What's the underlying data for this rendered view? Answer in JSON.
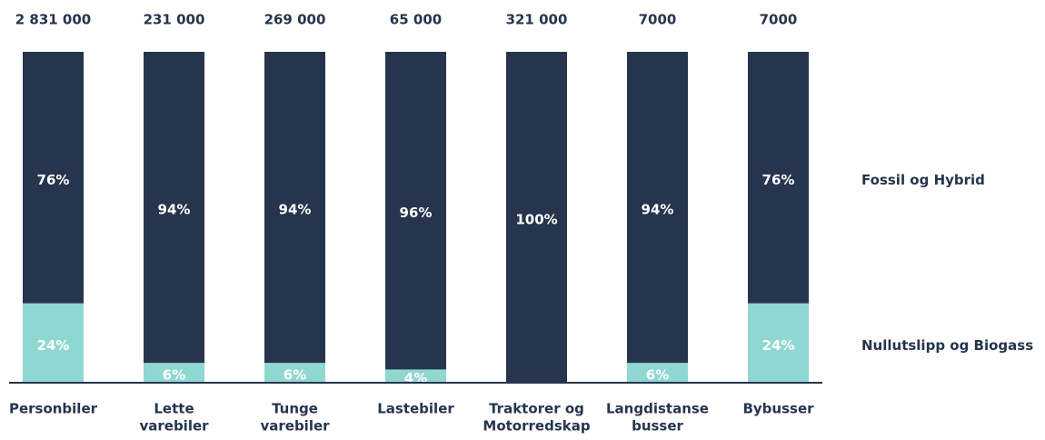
{
  "chart_data": {
    "type": "stacked_bar_100",
    "categories": [
      [
        "Personbiler"
      ],
      [
        "Lette",
        "varebiler"
      ],
      [
        "Tunge",
        "varebiler"
      ],
      [
        "Lastebiler"
      ],
      [
        "Traktorer og",
        "Motorredskap"
      ],
      [
        "Langdistanse",
        "busser"
      ],
      [
        "Bybusser"
      ]
    ],
    "totals": [
      2831000,
      231000,
      269000,
      65000,
      321000,
      7000,
      7000
    ],
    "total_labels": [
      "2 831 000",
      "231 000",
      "269 000",
      "65 000",
      "321 000",
      "7000",
      "7000"
    ],
    "series": [
      {
        "name": "Nullutslipp og Biogass",
        "color": "#8fd8d2",
        "values": [
          24,
          6,
          6,
          4,
          0,
          6,
          24
        ],
        "value_labels": [
          "24%",
          "6%",
          "6%",
          "4%",
          null,
          "6%",
          "24%"
        ]
      },
      {
        "name": "Fossil og Hybrid",
        "color": "#26354d",
        "values": [
          76,
          94,
          94,
          96,
          100,
          94,
          76
        ],
        "value_labels": [
          "76%",
          "94%",
          "94%",
          "96%",
          "100%",
          "94%",
          "76%"
        ]
      }
    ],
    "ylim": [
      0,
      100
    ]
  }
}
